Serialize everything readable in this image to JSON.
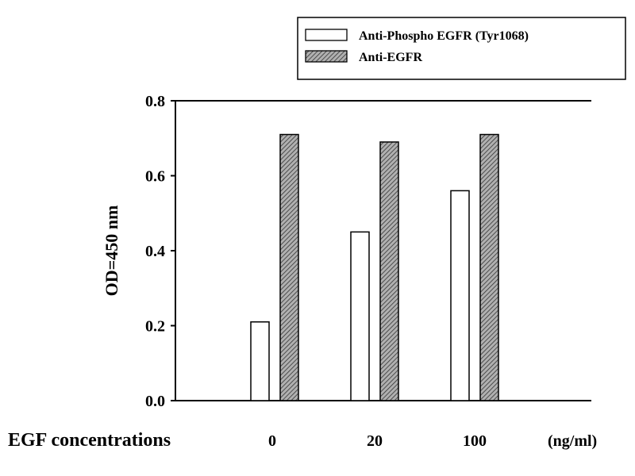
{
  "chart_data": {
    "type": "bar",
    "title": "",
    "xlabel": "EGF concentrations",
    "x_unit": "(ng/ml)",
    "ylabel": "OD=450 nm",
    "ylim": [
      0,
      0.8
    ],
    "yticks": [
      "0.0",
      "0.2",
      "0.4",
      "0.6",
      "0.8"
    ],
    "categories": [
      "0",
      "20",
      "100"
    ],
    "grid": false,
    "legend_position": "top-right",
    "series": [
      {
        "name": "Anti-Phospho EGFR (Tyr1068)",
        "values": [
          0.21,
          0.45,
          0.56
        ],
        "fill": "white"
      },
      {
        "name": "Anti-EGFR",
        "values": [
          0.71,
          0.69,
          0.71
        ],
        "fill": "hatched"
      }
    ]
  }
}
